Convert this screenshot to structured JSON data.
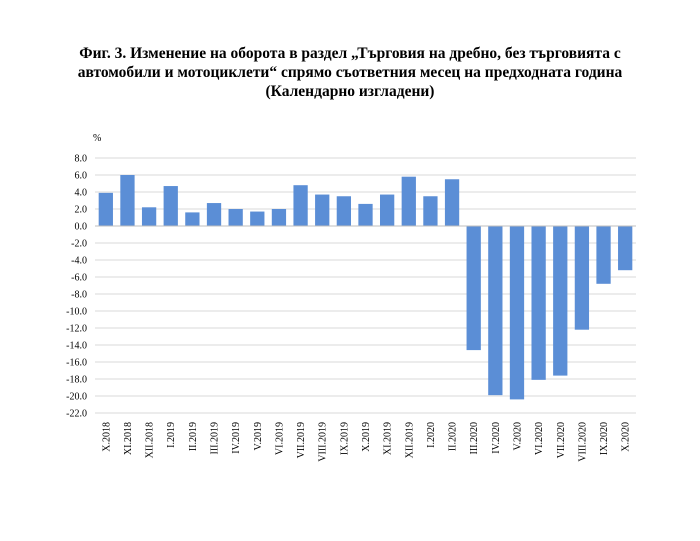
{
  "title_lines": [
    "Фиг. 3. Изменение на оборота в раздел „Търговия на дребно, без търговията с",
    "автомобили и мотоциклети“ спрямо съответния месец на предходната година",
    "(Календарно изгладени)"
  ],
  "chart_data": {
    "type": "bar",
    "title": "Фиг. 3. Изменение на оборота в раздел „Търговия на дребно, без търговията с автомобили и мотоциклети“ спрямо съответния месец на предходната година (Календарно изгладени)",
    "ylabel": "%",
    "xlabel": "",
    "ylim": [
      -22.0,
      8.0
    ],
    "ytick_step": 2.0,
    "grid": true,
    "bar_color": "#5B8ED6",
    "categories": [
      "X.2018",
      "XI.2018",
      "XII.2018",
      "I.2019",
      "II.2019",
      "III.2019",
      "IV.2019",
      "V.2019",
      "VI.2019",
      "VII.2019",
      "VIII.2019",
      "IX.2019",
      "X.2019",
      "XI.2019",
      "XII.2019",
      "I.2020",
      "II.2020",
      "III.2020",
      "IV.2020",
      "V.2020",
      "VI.2020",
      "VII.2020",
      "VIII.2020",
      "IX.2020",
      "X.2020"
    ],
    "values": [
      3.9,
      6.0,
      2.2,
      4.7,
      1.6,
      2.7,
      2.0,
      1.7,
      2.0,
      4.8,
      3.7,
      3.5,
      2.6,
      3.7,
      5.8,
      3.5,
      5.5,
      -14.6,
      -19.9,
      -20.4,
      -18.1,
      -17.6,
      -12.2,
      -6.8,
      -5.2
    ]
  }
}
